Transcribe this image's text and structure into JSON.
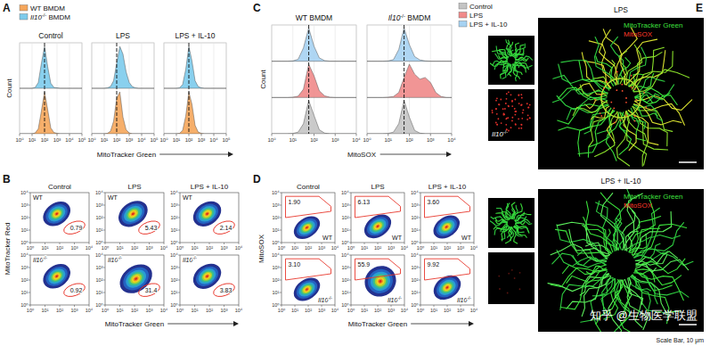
{
  "chart_data": [
    {
      "type": "histogram",
      "letter": "A",
      "x_label": "MitoTracker Green",
      "y_label": "Count",
      "x": [
        0,
        0.25,
        0.5,
        0.75,
        1,
        1.25,
        1.5,
        1.75,
        2,
        2.25,
        2.5,
        2.75,
        3,
        3.25,
        3.5,
        3.75,
        4,
        4.25,
        4.5,
        4.75,
        5
      ],
      "xlim": [
        0,
        5
      ],
      "xticks": [
        {
          "value": 0,
          "label": "10⁰"
        },
        {
          "value": 1,
          "label": "10¹"
        },
        {
          "value": 2,
          "label": "10²"
        },
        {
          "value": 3,
          "label": "10³"
        },
        {
          "value": 4,
          "label": "10⁴"
        },
        {
          "value": 5,
          "label": "10⁵"
        }
      ],
      "ylim": [
        0,
        100
      ],
      "tick_labels": "x",
      "grid": true,
      "legend": "top-left",
      "series": [
        {
          "name": "WT BMDM",
          "color": "#f5a65b"
        },
        {
          "name": "Il10-/- BMDM",
          "color": "#7ccbec"
        }
      ],
      "panels": [
        {
          "title": "Control",
          "reference_line": 2,
          "values": [
            [
              0,
              0,
              0,
              0,
              0,
              2,
              12,
              55,
              100,
              58,
              14,
              3,
              1,
              0,
              0,
              0,
              0,
              0,
              0,
              0,
              0
            ],
            [
              0,
              0,
              0,
              0,
              0,
              2,
              14,
              60,
              100,
              52,
              12,
              2,
              1,
              0,
              0,
              0,
              0,
              0,
              0,
              0,
              0
            ]
          ]
        },
        {
          "title": "LPS",
          "reference_line": 2,
          "values": [
            [
              0,
              0,
              0,
              0,
              0,
              1,
              6,
              30,
              85,
              100,
              40,
              10,
              2,
              0,
              0,
              0,
              0,
              0,
              0,
              0,
              0
            ],
            [
              0,
              0,
              0,
              0,
              0,
              1,
              4,
              18,
              60,
              100,
              82,
              40,
              14,
              4,
              1,
              0,
              0,
              0,
              0,
              0,
              0
            ]
          ]
        },
        {
          "title": "LPS + IL-10",
          "reference_line": 2,
          "values": [
            [
              0,
              0,
              0,
              0,
              0,
              1,
              8,
              42,
              100,
              70,
              20,
              4,
              1,
              0,
              0,
              0,
              0,
              0,
              0,
              0,
              0
            ],
            [
              0,
              0,
              0,
              0,
              0,
              1,
              9,
              45,
              100,
              65,
              18,
              4,
              1,
              0,
              0,
              0,
              0,
              0,
              0,
              0,
              0
            ]
          ]
        }
      ]
    },
    {
      "type": "histogram",
      "letter": "C",
      "x_label": "MitoSOX",
      "y_label": "Count",
      "x": [
        0,
        0.25,
        0.5,
        0.75,
        1,
        1.25,
        1.5,
        1.75,
        2,
        2.25,
        2.5,
        2.75,
        3,
        3.25,
        3.5,
        3.75,
        4
      ],
      "xlim": [
        0,
        4
      ],
      "xticks": [
        {
          "value": 0,
          "label": "10⁰"
        },
        {
          "value": 1,
          "label": "10¹"
        },
        {
          "value": 2,
          "label": "10²"
        },
        {
          "value": 3,
          "label": "10³"
        },
        {
          "value": 4,
          "label": "10⁴"
        }
      ],
      "ylim": [
        0,
        100
      ],
      "tick_labels": "x",
      "grid": true,
      "legend": "top-right",
      "series": [
        {
          "name": "Control",
          "color": "#c4c4c4"
        },
        {
          "name": "LPS",
          "color": "#f08a8a"
        },
        {
          "name": "LPS + IL-10",
          "color": "#a6d2f2"
        }
      ],
      "panels": [
        {
          "title": "WT BMDM",
          "reference_line": 1.75,
          "values": [
            [
              0,
              0,
              0,
              0,
              1,
              5,
              30,
              100,
              55,
              12,
              2,
              0,
              0,
              0,
              0,
              0,
              0
            ],
            [
              0,
              0,
              0,
              0,
              1,
              4,
              25,
              100,
              65,
              20,
              5,
              1,
              0,
              0,
              0,
              0,
              0
            ],
            [
              0,
              0,
              0,
              0,
              1,
              6,
              40,
              100,
              45,
              10,
              2,
              0,
              0,
              0,
              0,
              0,
              0
            ]
          ]
        },
        {
          "title": "Il10-/- BMDM",
          "reference_line": 1.75,
          "values": [
            [
              0,
              0,
              0,
              0,
              1,
              5,
              30,
              100,
              50,
              10,
              2,
              0,
              0,
              0,
              0,
              0,
              0
            ],
            [
              0,
              0,
              0,
              0,
              1,
              3,
              15,
              60,
              100,
              70,
              55,
              60,
              45,
              15,
              3,
              0,
              0
            ],
            [
              0,
              0,
              0,
              0,
              1,
              5,
              35,
              100,
              50,
              14,
              4,
              1,
              0,
              0,
              0,
              0,
              0
            ]
          ]
        }
      ]
    },
    {
      "type": "density_scatter",
      "letter": "B",
      "x_label": "MitoTracker Green",
      "y_label": "MitoTracker Red",
      "xlim": [
        0,
        4
      ],
      "ylim": [
        0,
        4
      ],
      "xticks": [
        {
          "value": 0,
          "label": "10⁰"
        },
        {
          "value": 1,
          "label": "10¹"
        },
        {
          "value": 2,
          "label": "10²"
        },
        {
          "value": 3,
          "label": "10³"
        },
        {
          "value": 4,
          "label": "10⁴"
        }
      ],
      "yticks": [
        {
          "value": 0,
          "label": "10⁰"
        },
        {
          "value": 1,
          "label": "10¹"
        },
        {
          "value": 2,
          "label": "10²"
        },
        {
          "value": 3,
          "label": "10³"
        },
        {
          "value": 4,
          "label": "10⁴"
        }
      ],
      "tick_labels": true,
      "grid": false,
      "color": "#e8392e",
      "gate": {
        "cx": 3.0,
        "cy": 1.2,
        "rx": 0.75,
        "ry": 0.45
      },
      "column_titles": [
        "Control",
        "LPS",
        "LPS + IL-10"
      ],
      "rows": [
        {
          "label": "WT",
          "panels": [
            {
              "cloud": {
                "cx": 1.8,
                "cy": 2.3,
                "sx": 0.42,
                "sy": 0.36
              },
              "percent": "0.79"
            },
            {
              "cloud": {
                "cx": 1.9,
                "cy": 2.3,
                "sx": 0.45,
                "sy": 0.38
              },
              "percent": "5.43"
            },
            {
              "cloud": {
                "cx": 1.85,
                "cy": 2.3,
                "sx": 0.43,
                "sy": 0.37
              },
              "percent": "2.14"
            }
          ]
        },
        {
          "label": "Il10-/-",
          "panels": [
            {
              "cloud": {
                "cx": 1.8,
                "cy": 2.3,
                "sx": 0.42,
                "sy": 0.36
              },
              "percent": "0.92"
            },
            {
              "cloud": {
                "cx": 2.1,
                "cy": 2.1,
                "sx": 0.5,
                "sy": 0.42
              },
              "percent": "31.4"
            },
            {
              "cloud": {
                "cx": 1.85,
                "cy": 2.3,
                "sx": 0.43,
                "sy": 0.37
              },
              "percent": "3.83"
            }
          ]
        }
      ]
    },
    {
      "type": "density_scatter",
      "letter": "D",
      "x_label": "MitoTracker Green",
      "y_label": "MitoSOX",
      "xlim": [
        0,
        4
      ],
      "ylim": [
        0,
        4
      ],
      "xticks": [
        {
          "value": 0,
          "label": "10⁰"
        },
        {
          "value": 1,
          "label": "10¹"
        },
        {
          "value": 2,
          "label": "10²"
        },
        {
          "value": 3,
          "label": "10³"
        },
        {
          "value": 4,
          "label": "10⁴"
        }
      ],
      "yticks": [
        {
          "value": 0,
          "label": "10⁰"
        },
        {
          "value": 1,
          "label": "10¹"
        },
        {
          "value": 2,
          "label": "10²"
        },
        {
          "value": 3,
          "label": "10³"
        },
        {
          "value": 4,
          "label": "10⁴"
        }
      ],
      "tick_labels": true,
      "grid": false,
      "color": "#e8392e",
      "gate": [
        [
          0.3,
          2.0
        ],
        [
          0.3,
          3.7
        ],
        [
          2.8,
          3.7
        ],
        [
          3.7,
          2.9
        ],
        [
          3.7,
          2.5
        ]
      ],
      "column_titles": [
        "Control",
        "LPS",
        "LPS + IL-10"
      ],
      "rows": [
        {
          "label": "WT",
          "panels": [
            {
              "cloud": {
                "cx": 1.9,
                "cy": 1.2,
                "sx": 0.45,
                "sy": 0.32
              },
              "percent": "1.90"
            },
            {
              "cloud": {
                "cx": 2.0,
                "cy": 1.3,
                "sx": 0.46,
                "sy": 0.34
              },
              "percent": "6.13"
            },
            {
              "cloud": {
                "cx": 1.95,
                "cy": 1.25,
                "sx": 0.45,
                "sy": 0.33
              },
              "percent": "3.60"
            }
          ]
        },
        {
          "label": "Il10-/-",
          "panels": [
            {
              "cloud": {
                "cx": 1.9,
                "cy": 1.25,
                "sx": 0.45,
                "sy": 0.33
              },
              "percent": "3.10"
            },
            {
              "cloud": {
                "cx": 2.2,
                "cy": 1.9,
                "sx": 0.5,
                "sy": 0.5
              },
              "percent": "55.9"
            },
            {
              "cloud": {
                "cx": 2.0,
                "cy": 1.4,
                "sx": 0.46,
                "sy": 0.36
              },
              "percent": "9.92"
            }
          ]
        }
      ]
    }
  ],
  "images": {
    "letter": "E",
    "panels": [
      {
        "title": "LPS",
        "channels": [
          "MitoTracker Green",
          "MitoSOX"
        ],
        "genotype": "Il10-/-"
      },
      {
        "title": "LPS + IL-10",
        "channels": [
          "MitoTracker Green",
          "MitoSOX"
        ]
      }
    ],
    "scale_bar": "Scale Bar, 10 μm"
  },
  "watermark": "知乎 @生物医学联盟"
}
